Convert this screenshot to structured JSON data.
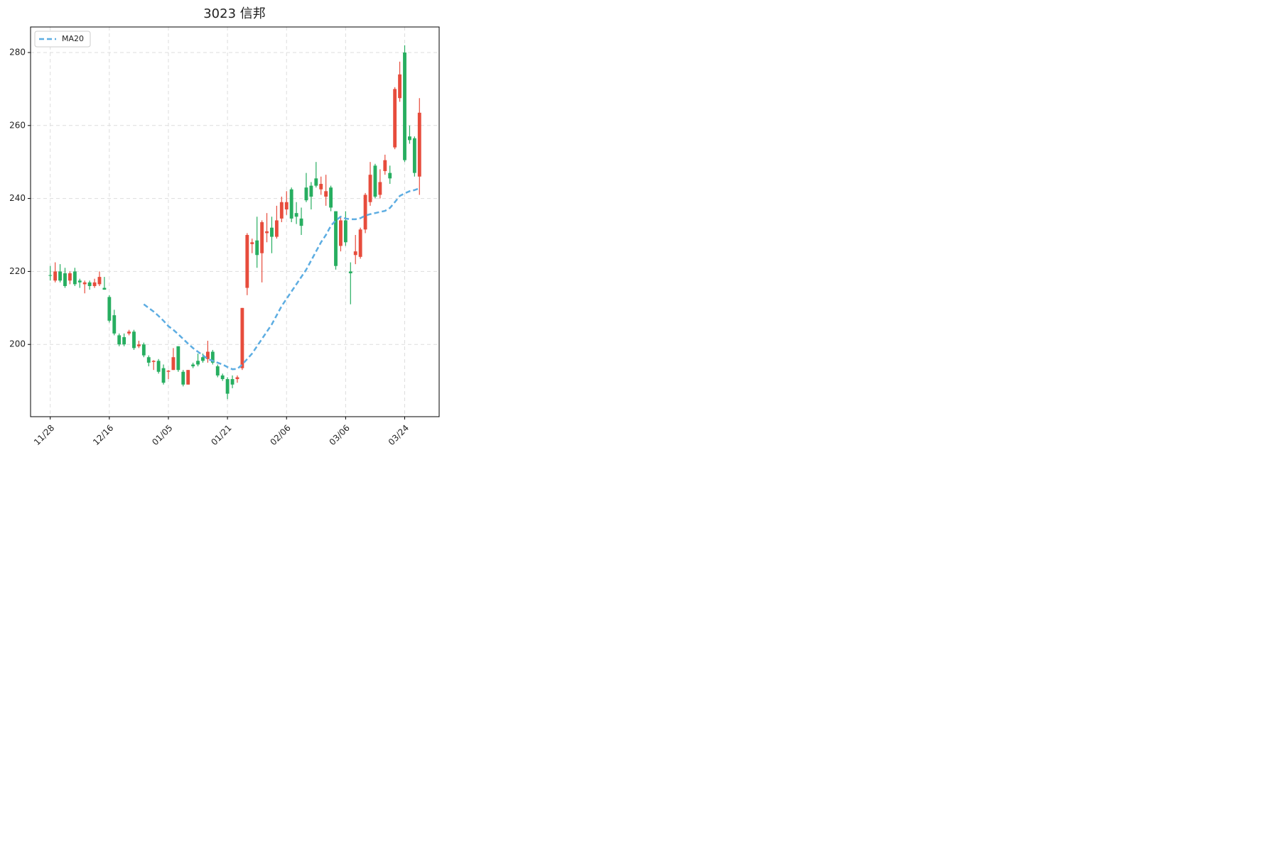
{
  "chart_data": {
    "type": "candlestick",
    "title": "3023 信邦",
    "categories": [
      "11/28",
      null,
      null,
      null,
      null,
      null,
      null,
      null,
      null,
      null,
      null,
      null,
      "12/16",
      null,
      null,
      null,
      null,
      null,
      null,
      null,
      null,
      null,
      null,
      null,
      "01/05",
      null,
      null,
      null,
      null,
      null,
      null,
      null,
      null,
      null,
      null,
      null,
      "01/21",
      null,
      null,
      null,
      null,
      null,
      null,
      null,
      null,
      null,
      null,
      null,
      "02/06",
      null,
      null,
      null,
      null,
      null,
      null,
      null,
      null,
      null,
      null,
      null,
      "03/06",
      null,
      null,
      null,
      null,
      null,
      null,
      null,
      null,
      null,
      null,
      null,
      "03/24",
      null,
      null,
      null
    ],
    "open": [
      219,
      217.5,
      220,
      219.5,
      217.5,
      220,
      217.5,
      216.5,
      217,
      216,
      216.5,
      215.5,
      213,
      208,
      202.5,
      202,
      203,
      203.5,
      199.5,
      200,
      196.5,
      195.2,
      195.5,
      193.5,
      192.5,
      193,
      199.5,
      192.5,
      189,
      194.5,
      195.5,
      196.5,
      196,
      198,
      194,
      191.5,
      190.5,
      190.5,
      190.5,
      193.5,
      215.5,
      227.5,
      228.5,
      225,
      230.5,
      232,
      229.5,
      234.5,
      237,
      242.5,
      236,
      234.5,
      243,
      243.5,
      245.5,
      242.5,
      240.5,
      243,
      236.5,
      227,
      234,
      220,
      224.5,
      224,
      231.5,
      239,
      249,
      241,
      247.5,
      247,
      254,
      267.5,
      280,
      257,
      256.5,
      246
    ],
    "high": [
      221.5,
      222.5,
      222,
      221,
      220,
      221,
      218,
      217.5,
      217.5,
      218,
      220,
      218.5,
      213.5,
      209.5,
      203,
      203,
      204,
      204,
      201,
      200.5,
      197,
      195.7,
      196,
      194.5,
      193,
      199,
      199.5,
      193,
      193,
      195,
      197.5,
      197.5,
      201,
      198.5,
      194.5,
      192,
      191,
      191.5,
      191.5,
      210,
      230.5,
      229,
      235,
      234,
      236,
      235,
      238,
      240.5,
      242,
      243,
      239,
      237.5,
      247,
      244.5,
      250,
      246,
      246.5,
      243.5,
      236.5,
      235,
      236.5,
      222.5,
      230,
      232,
      241.5,
      250,
      249.5,
      248,
      252,
      249,
      270.5,
      277.5,
      282,
      260,
      257,
      267.5
    ],
    "low": [
      217.5,
      217,
      217,
      215.5,
      216.5,
      216,
      215.5,
      214,
      215,
      215.5,
      216,
      215,
      206,
      202.5,
      199.5,
      199.5,
      202.5,
      198.5,
      199,
      196.5,
      194,
      193,
      192,
      189,
      190.5,
      193,
      192.5,
      188.5,
      189,
      193.5,
      194,
      195,
      195,
      194.5,
      191,
      190,
      185,
      188,
      189.5,
      193,
      213.5,
      225,
      221,
      217,
      228,
      225,
      229,
      233.5,
      235.5,
      233.5,
      233,
      230,
      239,
      237,
      243,
      241,
      238,
      236.5,
      220.5,
      225.5,
      227,
      211,
      222,
      223.5,
      230.5,
      238,
      240,
      240,
      246.5,
      244,
      253.5,
      266.5,
      250,
      255,
      246,
      241
    ],
    "close": [
      218.8,
      220,
      217.5,
      216,
      219.5,
      216.5,
      217,
      217,
      216,
      217,
      218.5,
      215,
      206.5,
      203,
      200,
      200,
      203.5,
      199,
      200,
      197,
      195,
      195.5,
      192.5,
      189.5,
      192.8,
      196.5,
      193,
      189,
      193,
      194,
      194.5,
      195.5,
      198,
      195,
      191.5,
      190.5,
      186.5,
      189,
      191,
      210,
      230,
      228,
      224.5,
      233.5,
      231,
      229.5,
      234,
      239,
      239,
      234.5,
      235,
      232.5,
      239.5,
      240.5,
      243.5,
      244,
      242,
      237.5,
      221.5,
      234,
      228,
      219.5,
      225.5,
      231.5,
      241,
      246.5,
      240.5,
      244.5,
      250.5,
      245.5,
      270,
      274,
      250.5,
      256,
      247,
      263.5
    ],
    "up_color": "#e74c3c",
    "down_color": "#27ae60",
    "ma": {
      "name": "MA20",
      "color": "#5dade2",
      "values": [
        null,
        null,
        null,
        null,
        null,
        null,
        null,
        null,
        null,
        null,
        null,
        null,
        null,
        null,
        null,
        null,
        null,
        null,
        null,
        211,
        210,
        209,
        207.8,
        206.5,
        205,
        204,
        202.8,
        201.5,
        200.2,
        199,
        198,
        197,
        196,
        195.5,
        195,
        194.5,
        193.8,
        193.2,
        193.3,
        194.5,
        196,
        197.5,
        199.5,
        201.5,
        203.5,
        205.5,
        208,
        210.5,
        212.5,
        214.5,
        216.5,
        218.5,
        220.5,
        223,
        225.5,
        228,
        230,
        232.5,
        234,
        235,
        234.5,
        234.3,
        234.3,
        234.6,
        235.3,
        235.7,
        236,
        236.3,
        236.6,
        237.4,
        239,
        240.7,
        241.4,
        242,
        242.3,
        242.8
      ]
    },
    "ylim": [
      180.2,
      287
    ],
    "yticks": [
      200,
      220,
      240,
      260,
      280
    ],
    "grid": true,
    "legend": "upper left"
  }
}
